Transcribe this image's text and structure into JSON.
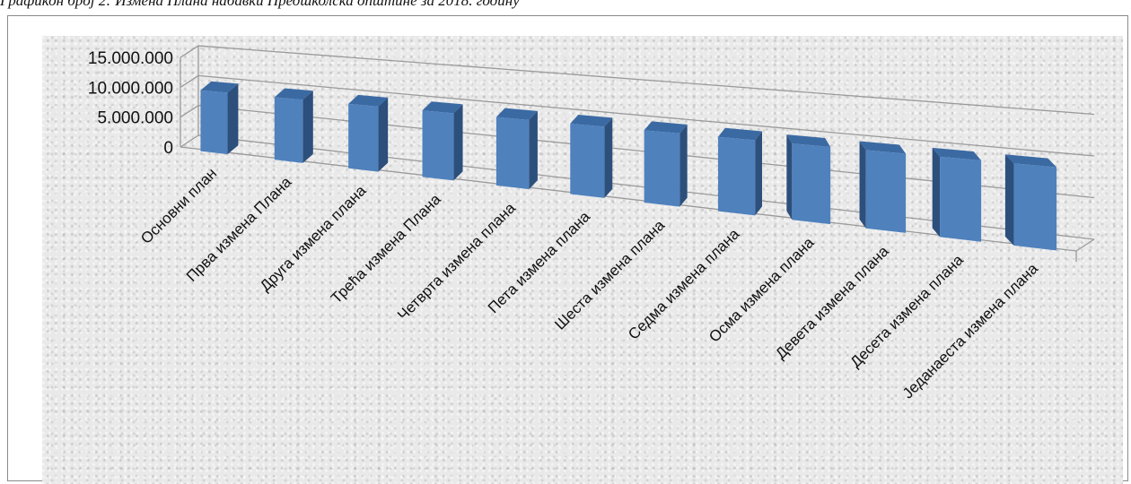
{
  "caption": "Графикон број 2: Измена Плана набавки Предшколска општине за 2018. годину",
  "chart_data": {
    "type": "bar",
    "style": "3d-column",
    "categories": [
      "Основни план",
      "Прва измена Плана",
      "Друга измена плана",
      "Трећа измена Плана",
      "Четврта измена плана",
      "Пета измена плана",
      "Шеста измена плана",
      "Седма измена плана",
      "Осма измена плана",
      "Девета измена плана",
      "Десета измена плана",
      "Једанаеста измена плана"
    ],
    "values": [
      10100000,
      10050000,
      10050000,
      10050000,
      10050000,
      10050000,
      10050000,
      10050000,
      10050000,
      10050000,
      10050000,
      10050000
    ],
    "yticks": [
      "0",
      "5.000.000",
      "10.000.000",
      "15.000.000"
    ],
    "ylim": [
      0,
      15000000
    ],
    "grid": true,
    "legend": "none",
    "colors": {
      "front": "#4f81bd",
      "side": "#2c4f7c",
      "top": "#3b6aa3",
      "gridline": "#9a9a9a"
    }
  }
}
